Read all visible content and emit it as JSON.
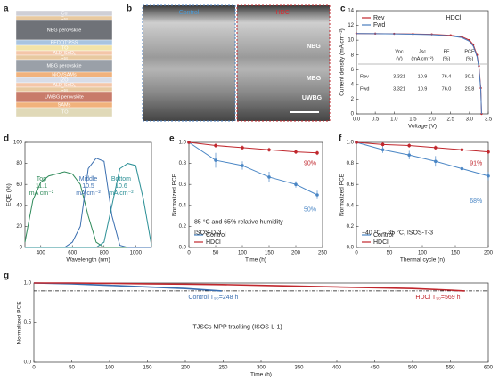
{
  "panels": {
    "a": {
      "panel": "a",
      "layers": [
        "Cu",
        "C₆₀",
        "NBG perovskite",
        "PEDOT:PSS",
        "ITO",
        "ALD-SnOₓ",
        "C₆₀",
        "MBG perovskite",
        "NiOₓ/SAMs",
        "IZO",
        "ALD-SnOₓ",
        "C₆₀",
        "UWBG perovskite",
        "SAMs",
        "ITO"
      ]
    },
    "b": {
      "panel": "b",
      "left": "Control",
      "right": "HDCl",
      "layers": [
        "NBG",
        "MBG",
        "UWBG"
      ]
    }
  },
  "chart_data": [
    {
      "panel": "c",
      "type": "line",
      "x_label": "Voltage (V)",
      "y_label": "Current density (mA cm⁻²)",
      "xlim": [
        0,
        3.5
      ],
      "ylim": [
        0,
        14
      ],
      "xticks": [
        {
          "value": 0,
          "label": "0.0"
        },
        0.5,
        {
          "value": 1,
          "label": "1.0"
        },
        1.5,
        {
          "value": 2,
          "label": "2.0"
        },
        2.5,
        {
          "value": 3,
          "label": "3.0"
        },
        3.5
      ],
      "yticks": [
        0,
        2,
        4,
        6,
        8,
        10,
        12,
        14
      ],
      "x": [
        0,
        0.5,
        1,
        1.5,
        2,
        2.5,
        2.8,
        3.0,
        3.1,
        3.2,
        3.25,
        3.3,
        3.321
      ],
      "series": [
        {
          "name": "Rev",
          "color": "#c0272d",
          "marker": true,
          "values": [
            10.9,
            10.88,
            10.86,
            10.83,
            10.78,
            10.65,
            10.45,
            10.0,
            9.4,
            8.0,
            6.5,
            3.5,
            0
          ]
        },
        {
          "name": "Fwd",
          "color": "#4a7dbf",
          "marker": false,
          "values": [
            10.9,
            10.87,
            10.84,
            10.8,
            10.74,
            10.58,
            10.35,
            9.85,
            9.2,
            7.8,
            6.3,
            3.3,
            0
          ]
        }
      ],
      "legend": "upper left",
      "annotations": [
        "HDCl"
      ],
      "table": {
        "headers": [
          [
            "Voc",
            "(V)"
          ],
          [
            "Jsc",
            "(mA cm⁻²)"
          ],
          [
            "FF",
            "(%)"
          ],
          [
            "PCE",
            "(%)"
          ]
        ],
        "rows": [
          [
            "Rev",
            "3.321",
            "10.9",
            "76.4",
            "30.1"
          ],
          [
            "Fwd",
            "3.321",
            "10.9",
            "76.0",
            "29.8"
          ]
        ]
      }
    },
    {
      "panel": "d",
      "type": "line",
      "x_label": "Wavelength (nm)",
      "y_label": "EQE (%)",
      "xlim": [
        300,
        1100
      ],
      "ylim": [
        0,
        100
      ],
      "xticks": [
        400,
        600,
        800,
        1000
      ],
      "yticks": [
        0,
        20,
        40,
        60,
        80,
        100
      ],
      "x": [
        300,
        350,
        400,
        450,
        500,
        550,
        600,
        650,
        700,
        750,
        800,
        850,
        900,
        950,
        1000,
        1050,
        1100
      ],
      "series": [
        {
          "name": "Top",
          "jsc": 11.1,
          "unit": "mA cm⁻²",
          "color": "#2f8a5a",
          "values": [
            5,
            45,
            62,
            68,
            70,
            72,
            70,
            60,
            30,
            5,
            0,
            0,
            0,
            0,
            0,
            0,
            0
          ]
        },
        {
          "name": "Middle",
          "jsc": 10.5,
          "unit": "mA cm⁻²",
          "color": "#3b6fb0",
          "values": [
            0,
            0,
            0,
            0,
            0,
            0,
            5,
            20,
            75,
            85,
            82,
            30,
            2,
            0,
            0,
            0,
            0
          ]
        },
        {
          "name": "Bottom",
          "jsc": 10.6,
          "unit": "mA cm⁻²",
          "color": "#2a8f95",
          "values": [
            0,
            0,
            0,
            0,
            0,
            0,
            0,
            0,
            0,
            0,
            5,
            40,
            75,
            80,
            78,
            45,
            2
          ]
        }
      ]
    },
    {
      "panel": "e",
      "type": "line",
      "x_label": "Time (h)",
      "y_label": "Normalized PCE",
      "xlim": [
        0,
        250
      ],
      "ylim": [
        0,
        1
      ],
      "xticks": [
        0,
        50,
        100,
        150,
        200,
        250
      ],
      "yticks": [
        {
          "value": 0,
          "label": "0.0"
        },
        0.2,
        0.4,
        0.6,
        0.8,
        {
          "value": 1,
          "label": "1.0"
        }
      ],
      "x": [
        0,
        50,
        100,
        150,
        200,
        240
      ],
      "series": [
        {
          "name": "Control",
          "color": "#4a86c5",
          "marker": true,
          "values": [
            1.0,
            0.83,
            0.78,
            0.67,
            0.6,
            0.5
          ],
          "errors": [
            0,
            0.07,
            0.04,
            0.05,
            0.03,
            0.04
          ]
        },
        {
          "name": "HDCl",
          "color": "#c0272d",
          "marker": true,
          "values": [
            1.0,
            0.97,
            0.95,
            0.93,
            0.91,
            0.9
          ],
          "errors": [
            0,
            0.02,
            0.02,
            0.02,
            0.02,
            0.02
          ]
        }
      ],
      "legend": "lower left",
      "annotations": [
        "90%",
        "50%",
        "85 °C and 65% relative humidity",
        "ISOS-D-3"
      ]
    },
    {
      "panel": "f",
      "type": "line",
      "x_label": "Thermal cycle (n)",
      "y_label": "Normalized PCE",
      "xlim": [
        0,
        200
      ],
      "ylim": [
        0,
        1
      ],
      "xticks": [
        0,
        50,
        100,
        150,
        200
      ],
      "yticks": [
        {
          "value": 0,
          "label": "0.0"
        },
        0.2,
        0.4,
        0.6,
        0.8,
        {
          "value": 1,
          "label": "1.0"
        }
      ],
      "x": [
        0,
        40,
        80,
        120,
        160,
        200
      ],
      "series": [
        {
          "name": "Control",
          "color": "#4a86c5",
          "marker": true,
          "values": [
            1.0,
            0.93,
            0.88,
            0.82,
            0.75,
            0.68
          ],
          "errors": [
            0,
            0.03,
            0.04,
            0.05,
            0.04,
            0.04
          ]
        },
        {
          "name": "HDCl",
          "color": "#c0272d",
          "marker": true,
          "values": [
            1.0,
            0.98,
            0.97,
            0.95,
            0.93,
            0.91
          ],
          "errors": [
            0,
            0.02,
            0.02,
            0.02,
            0.02,
            0.02
          ]
        }
      ],
      "legend": "lower left",
      "annotations": [
        "91%",
        "68%",
        "−40 °C – 85 °C, ISOS-T-3"
      ]
    },
    {
      "panel": "g",
      "type": "line",
      "x_label": "Time (h)",
      "y_label": "Normalized PCE",
      "xlim": [
        0,
        600
      ],
      "ylim": [
        0,
        1
      ],
      "xticks": [
        0,
        50,
        100,
        150,
        200,
        250,
        300,
        350,
        400,
        450,
        500,
        550,
        600
      ],
      "yticks": [
        {
          "value": 0,
          "label": "0.0"
        },
        {
          "value": 0.5,
          "label": "0.5"
        },
        {
          "value": 1,
          "label": "1.0"
        }
      ],
      "x": [
        0,
        50,
        100,
        150,
        200,
        248,
        300,
        350,
        400,
        450,
        500,
        550,
        569
      ],
      "series": [
        {
          "color": "#3b6fb0",
          "values": [
            1.0,
            0.99,
            0.97,
            0.95,
            0.93,
            0.9,
            null,
            null,
            null,
            null,
            null,
            null,
            null
          ]
        },
        {
          "color": "#c0272d",
          "values": [
            1.0,
            1.0,
            0.995,
            0.99,
            0.985,
            0.98,
            0.97,
            0.96,
            0.95,
            0.94,
            0.93,
            0.91,
            0.9
          ]
        }
      ],
      "hline": 0.9,
      "annotations": [
        "Control T₉₀=248 h",
        "HDCl T₉₀=569 h",
        "TJSCs MPP tracking (ISOS-L-1)"
      ]
    }
  ]
}
